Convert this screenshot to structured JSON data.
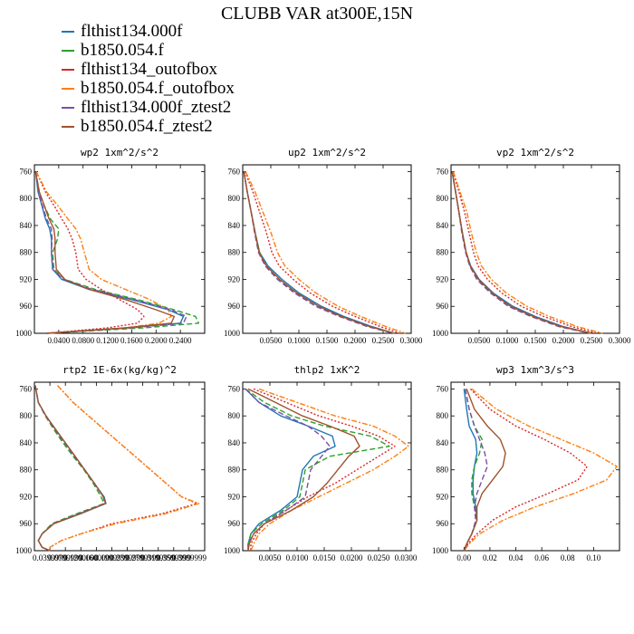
{
  "title": "CLUBB VAR at300E,15N",
  "legend": [
    {
      "label": "flthist134.000f",
      "color": "#1f77b4"
    },
    {
      "label": "b1850.054.f",
      "color": "#2ca02c"
    },
    {
      "label": "flthist134_outofbox",
      "color": "#d62728"
    },
    {
      "label": "b1850.054.f_outofbox",
      "color": "#ff7f0e"
    },
    {
      "label": "flthist134.000f_ztest2",
      "color": "#7b4fa6"
    },
    {
      "label": "b1850.054.f_ztest2",
      "color": "#a0522d"
    }
  ],
  "chart_data": [
    {
      "type": "line",
      "title": "wp2  1xm^2/s^2",
      "xlim": [
        0.0,
        0.28
      ],
      "ylim": [
        1000,
        750
      ],
      "xticks": [
        "0.0400",
        "0.0800",
        "0.1200",
        "0.1600",
        "0.2000",
        "0.2400"
      ],
      "xtick_values": [
        0.04,
        0.08,
        0.12,
        0.16,
        0.2,
        0.24
      ],
      "yticks": [
        "760",
        "800",
        "840",
        "880",
        "920",
        "960",
        "1000"
      ],
      "levels": [
        760,
        790,
        810,
        830,
        845,
        860,
        880,
        905,
        920,
        935,
        950,
        965,
        975,
        985,
        992,
        1000
      ],
      "series": [
        {
          "name": "flthist134.000f",
          "values": [
            0.002,
            0.006,
            0.012,
            0.018,
            0.025,
            0.028,
            0.028,
            0.03,
            0.045,
            0.09,
            0.16,
            0.22,
            0.245,
            0.24,
            0.15,
            0.02
          ]
        },
        {
          "name": "b1850.054.f",
          "values": [
            0.002,
            0.008,
            0.016,
            0.026,
            0.04,
            0.038,
            0.03,
            0.032,
            0.05,
            0.1,
            0.17,
            0.23,
            0.265,
            0.27,
            0.18,
            0.02
          ]
        },
        {
          "name": "flthist134_outofbox",
          "values": [
            0.003,
            0.018,
            0.032,
            0.045,
            0.055,
            0.062,
            0.068,
            0.072,
            0.085,
            0.11,
            0.14,
            0.17,
            0.18,
            0.17,
            0.12,
            0.02
          ]
        },
        {
          "name": "b1850.054.f_outofbox",
          "values": [
            0.003,
            0.02,
            0.038,
            0.055,
            0.068,
            0.076,
            0.082,
            0.09,
            0.11,
            0.15,
            0.19,
            0.22,
            0.225,
            0.205,
            0.15,
            0.02
          ]
        },
        {
          "name": "flthist134.000f_ztest2",
          "values": [
            0.002,
            0.007,
            0.013,
            0.02,
            0.028,
            0.029,
            0.028,
            0.03,
            0.048,
            0.095,
            0.165,
            0.225,
            0.25,
            0.245,
            0.16,
            0.02
          ]
        },
        {
          "name": "b1850.054.f_ztest2",
          "values": [
            0.002,
            0.008,
            0.016,
            0.024,
            0.032,
            0.034,
            0.034,
            0.036,
            0.05,
            0.09,
            0.15,
            0.2,
            0.23,
            0.225,
            0.15,
            0.02
          ]
        }
      ]
    },
    {
      "type": "line",
      "title": "up2  1xm^2/s^2",
      "xlim": [
        0.0,
        0.3
      ],
      "ylim": [
        1000,
        750
      ],
      "xticks": [
        "0.0500",
        "0.1000",
        "0.1500",
        "0.2000",
        "0.2500",
        "0.3000"
      ],
      "xtick_values": [
        0.05,
        0.1,
        0.15,
        0.2,
        0.25,
        0.3
      ],
      "yticks": [
        "760",
        "800",
        "840",
        "880",
        "920",
        "960",
        "1000"
      ],
      "levels": [
        760,
        790,
        820,
        850,
        880,
        900,
        920,
        940,
        960,
        975,
        990,
        1000
      ],
      "series": [
        {
          "name": "flthist134.000f",
          "values": [
            0.002,
            0.008,
            0.015,
            0.022,
            0.03,
            0.045,
            0.07,
            0.1,
            0.14,
            0.18,
            0.23,
            0.27
          ]
        },
        {
          "name": "b1850.054.f",
          "values": [
            0.002,
            0.008,
            0.015,
            0.022,
            0.03,
            0.042,
            0.065,
            0.095,
            0.135,
            0.175,
            0.225,
            0.27
          ]
        },
        {
          "name": "flthist134_outofbox",
          "values": [
            0.004,
            0.018,
            0.03,
            0.042,
            0.052,
            0.065,
            0.09,
            0.12,
            0.16,
            0.2,
            0.245,
            0.28
          ]
        },
        {
          "name": "b1850.054.f_outofbox",
          "values": [
            0.005,
            0.022,
            0.036,
            0.05,
            0.062,
            0.075,
            0.1,
            0.13,
            0.17,
            0.21,
            0.255,
            0.29
          ]
        },
        {
          "name": "flthist134.000f_ztest2",
          "values": [
            0.002,
            0.008,
            0.015,
            0.021,
            0.028,
            0.04,
            0.062,
            0.092,
            0.13,
            0.172,
            0.222,
            0.268
          ]
        },
        {
          "name": "b1850.054.f_ztest2",
          "values": [
            0.002,
            0.008,
            0.015,
            0.022,
            0.029,
            0.042,
            0.066,
            0.096,
            0.135,
            0.176,
            0.226,
            0.27
          ]
        }
      ]
    },
    {
      "type": "line",
      "title": "vp2  1xm^2/s^2",
      "xlim": [
        0.0,
        0.3
      ],
      "ylim": [
        1000,
        750
      ],
      "xticks": [
        "0.0500",
        "0.1000",
        "0.1500",
        "0.2000",
        "0.2500",
        "0.3000"
      ],
      "xtick_values": [
        0.05,
        0.1,
        0.15,
        0.2,
        0.25,
        0.3
      ],
      "yticks": [
        "760",
        "800",
        "840",
        "880",
        "920",
        "960",
        "1000"
      ],
      "levels": [
        760,
        790,
        820,
        850,
        880,
        900,
        920,
        940,
        960,
        975,
        990,
        1000
      ],
      "series": [
        {
          "name": "flthist134.000f",
          "values": [
            0.002,
            0.008,
            0.014,
            0.02,
            0.027,
            0.035,
            0.05,
            0.075,
            0.11,
            0.15,
            0.2,
            0.25
          ]
        },
        {
          "name": "b1850.054.f",
          "values": [
            0.002,
            0.008,
            0.014,
            0.02,
            0.027,
            0.034,
            0.048,
            0.072,
            0.105,
            0.145,
            0.195,
            0.25
          ]
        },
        {
          "name": "flthist134_outofbox",
          "values": [
            0.003,
            0.014,
            0.024,
            0.032,
            0.04,
            0.048,
            0.065,
            0.09,
            0.125,
            0.165,
            0.215,
            0.26
          ]
        },
        {
          "name": "b1850.054.f_outofbox",
          "values": [
            0.004,
            0.016,
            0.028,
            0.036,
            0.045,
            0.054,
            0.072,
            0.098,
            0.135,
            0.175,
            0.225,
            0.27
          ]
        },
        {
          "name": "flthist134.000f_ztest2",
          "values": [
            0.002,
            0.008,
            0.014,
            0.019,
            0.026,
            0.033,
            0.046,
            0.07,
            0.102,
            0.142,
            0.192,
            0.248
          ]
        },
        {
          "name": "b1850.054.f_ztest2",
          "values": [
            0.002,
            0.008,
            0.014,
            0.02,
            0.027,
            0.034,
            0.049,
            0.073,
            0.106,
            0.146,
            0.196,
            0.25
          ]
        }
      ]
    },
    {
      "type": "line",
      "title": "rtp2  1E-6x(kg/kg)^2",
      "xlim": [
        0.0,
        0.44
      ],
      "ylim": [
        1000,
        750
      ],
      "xticks": [
        "0.0399999",
        "0.0799999",
        "0.1200000",
        "0.1600000",
        "0.1999999",
        "0.2399999",
        "0.2799999",
        "0.3199999",
        "0.3599999",
        "0.3999999"
      ],
      "xtick_values": [
        0.04,
        0.08,
        0.12,
        0.16,
        0.2,
        0.24,
        0.28,
        0.32,
        0.36,
        0.4
      ],
      "yticks": [
        "760",
        "800",
        "840",
        "880",
        "920",
        "960",
        "1000"
      ],
      "levels": [
        755,
        780,
        800,
        820,
        840,
        860,
        880,
        900,
        920,
        930,
        945,
        960,
        975,
        985,
        995,
        1000
      ],
      "series": [
        {
          "name": "flthist134.000f",
          "values": [
            0.002,
            0.01,
            0.03,
            0.055,
            0.08,
            0.105,
            0.13,
            0.155,
            0.18,
            0.185,
            0.12,
            0.05,
            0.02,
            0.01,
            0.02,
            0.04
          ]
        },
        {
          "name": "b1850.054.f",
          "values": [
            0.002,
            0.01,
            0.028,
            0.05,
            0.074,
            0.1,
            0.128,
            0.152,
            0.172,
            0.18,
            0.11,
            0.045,
            0.02,
            0.01,
            0.02,
            0.04
          ]
        },
        {
          "name": "flthist134_outofbox",
          "values": [
            0.06,
            0.1,
            0.14,
            0.18,
            0.22,
            0.26,
            0.3,
            0.34,
            0.38,
            0.42,
            0.33,
            0.2,
            0.12,
            0.07,
            0.04,
            0.04
          ]
        },
        {
          "name": "b1850.054.f_outofbox",
          "values": [
            0.06,
            0.1,
            0.14,
            0.18,
            0.22,
            0.26,
            0.3,
            0.34,
            0.38,
            0.425,
            0.34,
            0.21,
            0.12,
            0.07,
            0.04,
            0.04
          ]
        },
        {
          "name": "flthist134.000f_ztest2",
          "values": [
            0.002,
            0.01,
            0.029,
            0.053,
            0.078,
            0.103,
            0.13,
            0.155,
            0.178,
            0.182,
            0.115,
            0.048,
            0.02,
            0.01,
            0.02,
            0.04
          ]
        },
        {
          "name": "b1850.054.f_ztest2",
          "values": [
            0.002,
            0.01,
            0.03,
            0.054,
            0.08,
            0.105,
            0.13,
            0.155,
            0.178,
            0.184,
            0.118,
            0.05,
            0.02,
            0.01,
            0.02,
            0.04
          ]
        }
      ]
    },
    {
      "type": "line",
      "title": "thlp2  1xK^2",
      "xlim": [
        0.0,
        0.031
      ],
      "ylim": [
        1000,
        750
      ],
      "xticks": [
        "0.0050",
        "0.0100",
        "0.0150",
        "0.0200",
        "0.0250",
        "0.0300"
      ],
      "xtick_values": [
        0.005,
        0.01,
        0.015,
        0.02,
        0.025,
        0.03
      ],
      "yticks": [
        "760",
        "800",
        "840",
        "880",
        "920",
        "960",
        "1000"
      ],
      "levels": [
        760,
        780,
        800,
        815,
        830,
        845,
        860,
        880,
        900,
        920,
        940,
        960,
        975,
        990,
        1000
      ],
      "series": [
        {
          "name": "flthist134.000f",
          "values": [
            0.0005,
            0.003,
            0.007,
            0.012,
            0.0165,
            0.017,
            0.013,
            0.011,
            0.0105,
            0.01,
            0.007,
            0.003,
            0.0015,
            0.001,
            0.001
          ]
        },
        {
          "name": "b1850.054.f",
          "values": [
            0.0005,
            0.004,
            0.009,
            0.015,
            0.0235,
            0.027,
            0.016,
            0.0115,
            0.011,
            0.0105,
            0.0075,
            0.0035,
            0.0015,
            0.001,
            0.001
          ]
        },
        {
          "name": "flthist134_outofbox",
          "values": [
            0.002,
            0.008,
            0.014,
            0.02,
            0.025,
            0.028,
            0.025,
            0.021,
            0.017,
            0.012,
            0.008,
            0.004,
            0.0025,
            0.0015,
            0.0015
          ]
        },
        {
          "name": "b1850.054.f_outofbox",
          "values": [
            0.003,
            0.01,
            0.017,
            0.024,
            0.028,
            0.0305,
            0.028,
            0.024,
            0.019,
            0.014,
            0.009,
            0.005,
            0.003,
            0.002,
            0.0015
          ]
        },
        {
          "name": "flthist134.000f_ztest2",
          "values": [
            0.0005,
            0.003,
            0.008,
            0.012,
            0.0145,
            0.016,
            0.0145,
            0.0125,
            0.012,
            0.0115,
            0.008,
            0.004,
            0.002,
            0.001,
            0.001
          ]
        },
        {
          "name": "b1850.054.f_ztest2",
          "values": [
            0.001,
            0.006,
            0.011,
            0.016,
            0.0205,
            0.0215,
            0.0195,
            0.0175,
            0.0155,
            0.013,
            0.009,
            0.004,
            0.002,
            0.0012,
            0.001
          ]
        }
      ]
    },
    {
      "type": "line",
      "title": "wp3  1xm^3/s^3",
      "xlim": [
        -0.01,
        0.12
      ],
      "ylim": [
        1000,
        750
      ],
      "xticks": [
        "0.00",
        "0.02",
        "0.04",
        "0.06",
        "0.08",
        "0.10"
      ],
      "xtick_values": [
        0.0,
        0.02,
        0.04,
        0.06,
        0.08,
        0.1
      ],
      "yticks": [
        "760",
        "800",
        "840",
        "880",
        "920",
        "960",
        "1000"
      ],
      "levels": [
        760,
        790,
        815,
        835,
        855,
        875,
        895,
        915,
        935,
        955,
        975,
        990,
        1000
      ],
      "series": [
        {
          "name": "flthist134.000f",
          "values": [
            0.0,
            0.002,
            0.004,
            0.009,
            0.01,
            0.008,
            0.007,
            0.007,
            0.009,
            0.01,
            0.006,
            0.002,
            0.0
          ]
        },
        {
          "name": "b1850.054.f",
          "values": [
            0.001,
            0.004,
            0.008,
            0.014,
            0.012,
            0.008,
            0.006,
            0.006,
            0.008,
            0.01,
            0.006,
            0.002,
            0.0
          ]
        },
        {
          "name": "flthist134_outofbox",
          "values": [
            0.005,
            0.02,
            0.04,
            0.062,
            0.082,
            0.095,
            0.088,
            0.065,
            0.04,
            0.022,
            0.01,
            0.003,
            0.0
          ]
        },
        {
          "name": "b1850.054.f_outofbox",
          "values": [
            0.006,
            0.025,
            0.05,
            0.075,
            0.1,
            0.118,
            0.11,
            0.085,
            0.055,
            0.03,
            0.012,
            0.004,
            0.0
          ]
        },
        {
          "name": "flthist134.000f_ztest2",
          "values": [
            0.001,
            0.004,
            0.008,
            0.012,
            0.016,
            0.018,
            0.014,
            0.01,
            0.008,
            0.009,
            0.006,
            0.002,
            0.0
          ]
        },
        {
          "name": "b1850.054.f_ztest2",
          "values": [
            0.002,
            0.008,
            0.018,
            0.028,
            0.032,
            0.03,
            0.022,
            0.014,
            0.01,
            0.01,
            0.006,
            0.002,
            0.0
          ]
        }
      ]
    }
  ]
}
